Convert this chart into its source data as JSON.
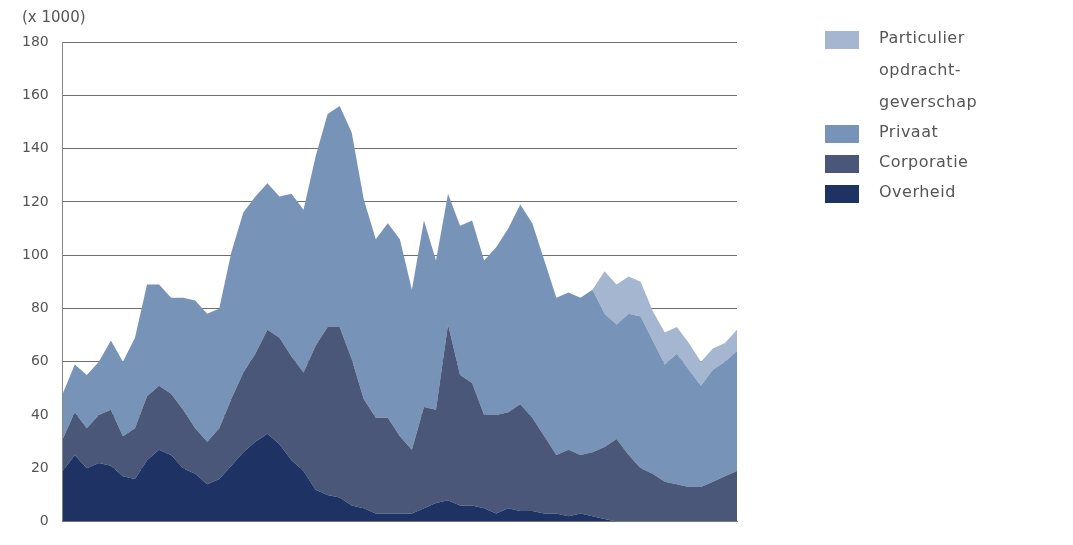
{
  "chart_data": {
    "type": "area",
    "ylabel": "(x 1000)",
    "stacked": true,
    "legend": "top right",
    "grid": "y",
    "ylim": [
      0,
      180
    ],
    "yticks": [
      0,
      20,
      40,
      60,
      80,
      100,
      120,
      140,
      160,
      180
    ],
    "categories": [
      null,
      null,
      null,
      null,
      null,
      null,
      null,
      null,
      null,
      null,
      null,
      null,
      null,
      null,
      null,
      null,
      null,
      null,
      null,
      null,
      null,
      null,
      null,
      null,
      null,
      null,
      null,
      null,
      null,
      null,
      null,
      null,
      null,
      null,
      null,
      null,
      null,
      null,
      null,
      null,
      null,
      null,
      null,
      null,
      null,
      null,
      null,
      null,
      null,
      null,
      null,
      null,
      null,
      null,
      null,
      null,
      null
    ],
    "series": [
      {
        "name": "Overheid",
        "color": "#1e3363",
        "values": [
          19,
          25,
          20,
          22,
          21,
          17,
          16,
          23,
          27,
          25,
          20,
          18,
          14,
          16,
          21,
          26,
          30,
          33,
          29,
          23,
          19,
          12,
          10,
          9,
          6,
          5,
          3,
          3,
          3,
          3,
          5,
          7,
          8,
          6,
          6,
          5,
          3,
          5,
          4,
          4,
          3,
          3,
          2,
          3,
          2,
          1,
          0,
          0,
          0,
          0,
          0,
          0,
          0,
          0,
          0,
          0,
          0
        ]
      },
      {
        "name": "Corporatie",
        "color": "#4a5779",
        "values": [
          12,
          16,
          15,
          18,
          21,
          15,
          19,
          24,
          24,
          23,
          22,
          17,
          16,
          19,
          25,
          30,
          33,
          39,
          40,
          39,
          37,
          54,
          63,
          64,
          55,
          41,
          36,
          36,
          29,
          24,
          38,
          35,
          66,
          49,
          46,
          35,
          37,
          36,
          40,
          35,
          29,
          22,
          25,
          22,
          24,
          27,
          31,
          25,
          20,
          18,
          15,
          14,
          13,
          13,
          15,
          17,
          19
        ]
      },
      {
        "name": "Privaat",
        "color": "#7793b7",
        "values": [
          17,
          18,
          20,
          20,
          26,
          28,
          34,
          42,
          38,
          36,
          42,
          48,
          48,
          45,
          55,
          60,
          59,
          55,
          53,
          61,
          61,
          71,
          80,
          83,
          85,
          75,
          67,
          73,
          74,
          60,
          70,
          56,
          49,
          56,
          61,
          58,
          63,
          69,
          75,
          73,
          66,
          59,
          59,
          59,
          61,
          50,
          43,
          53,
          57,
          50,
          44,
          49,
          44,
          38,
          42,
          43,
          45
        ]
      },
      {
        "name": "Particulier opdracht-geverschap",
        "color": "#a4b6d0",
        "values": [
          null,
          null,
          null,
          null,
          null,
          null,
          null,
          null,
          null,
          null,
          null,
          null,
          null,
          null,
          null,
          null,
          null,
          null,
          null,
          null,
          null,
          null,
          null,
          null,
          null,
          null,
          null,
          null,
          null,
          null,
          null,
          null,
          null,
          null,
          null,
          null,
          null,
          null,
          null,
          null,
          null,
          null,
          null,
          null,
          0,
          16,
          15,
          14,
          13,
          11,
          12,
          10,
          10,
          9,
          8,
          7,
          8
        ]
      }
    ]
  }
}
